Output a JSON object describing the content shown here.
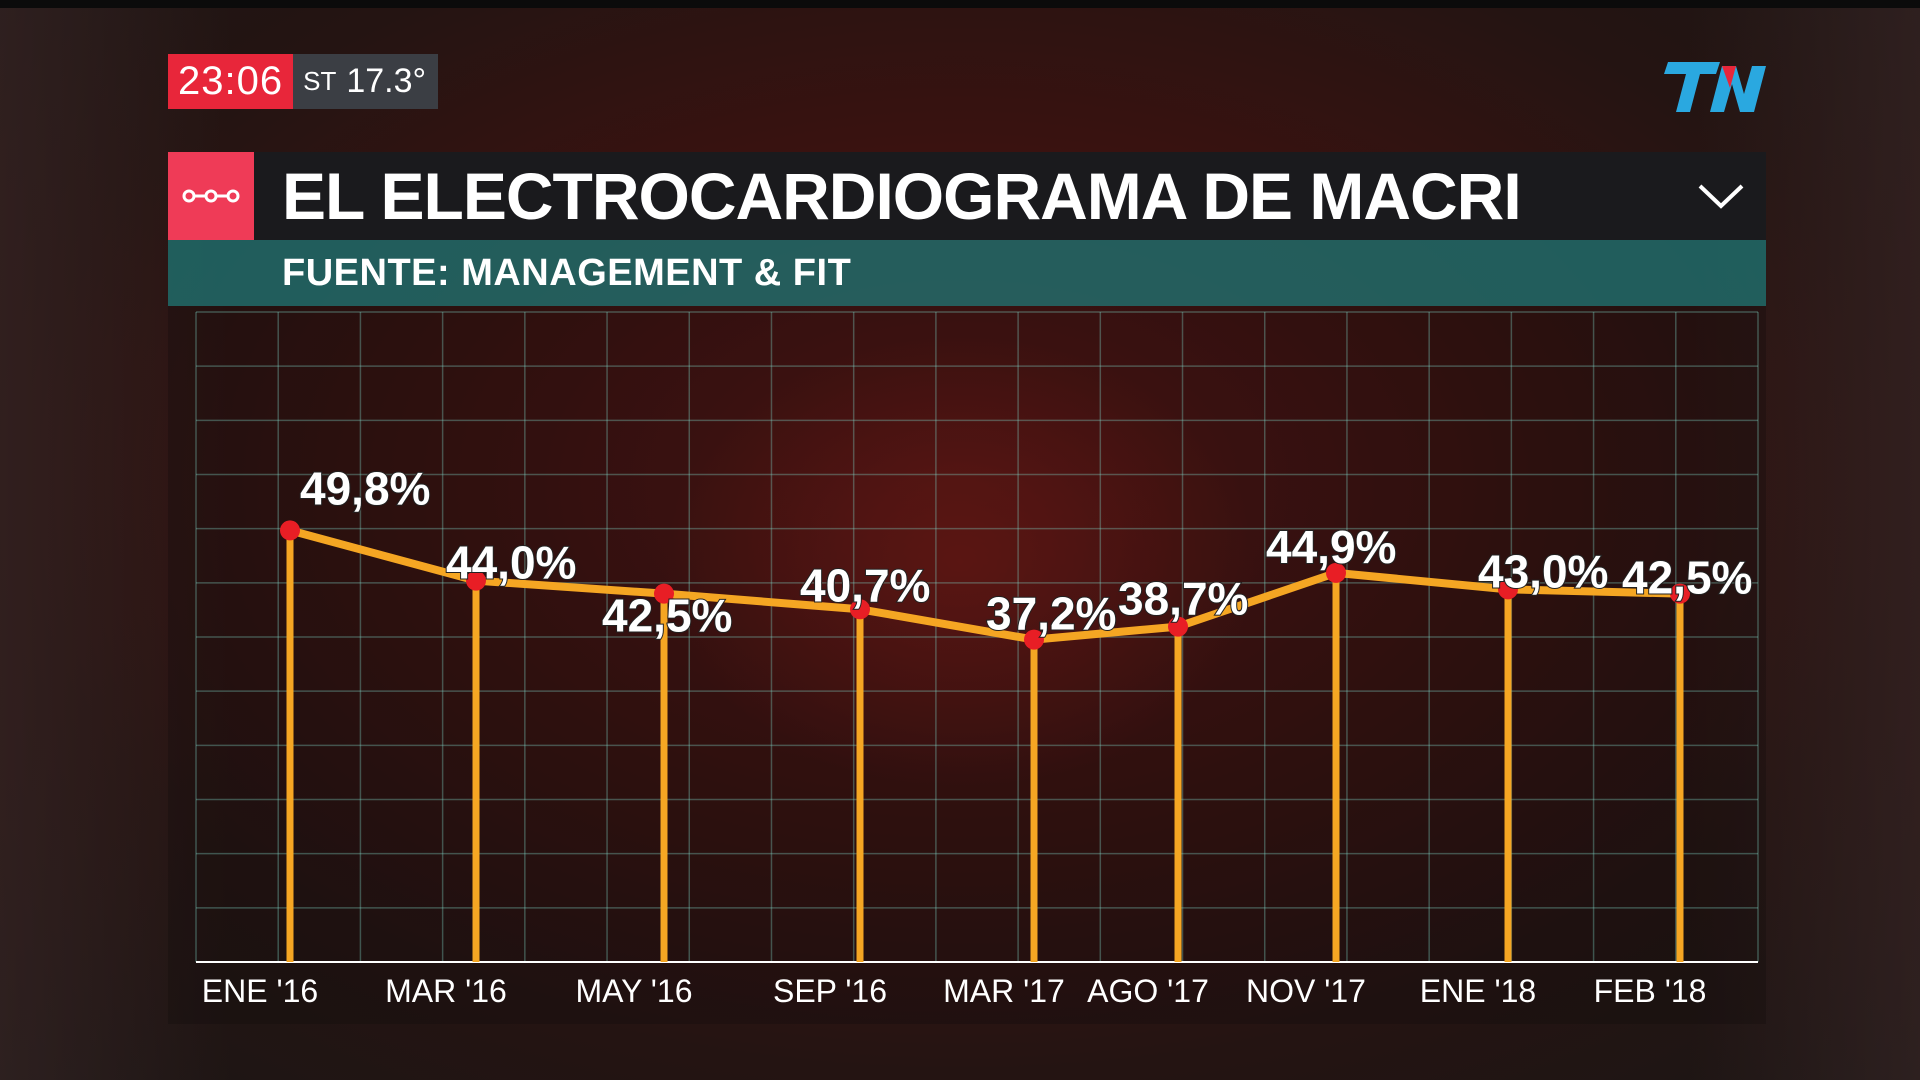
{
  "clock": {
    "time": "23:06",
    "temp_prefix": "ST",
    "temperature": "17.3°"
  },
  "logo": {
    "icon": "tn-logo-icon",
    "text": "TN",
    "color": "#2aa8e0",
    "accent": "#e8263a"
  },
  "header": {
    "title": "EL ELECTROCARDIOGRAMA DE MACRI",
    "badge_icon": "timeline-icon",
    "chevron_icon": "chevron-down-icon",
    "badge_color": "#ef3b57"
  },
  "subheader": {
    "source": "FUENTE: MANAGEMENT & FIT"
  },
  "chart_data": {
    "type": "line",
    "title": "EL ELECTROCARDIOGRAMA DE MACRI",
    "subtitle": "FUENTE: MANAGEMENT & FIT",
    "categories": [
      "ENE '16",
      "MAR '16",
      "MAY '16",
      "SEP '16",
      "MAR '17",
      "AGO '17",
      "NOV '17",
      "ENE '18",
      "FEB '18"
    ],
    "values": [
      49.8,
      44.0,
      42.5,
      40.7,
      37.2,
      38.7,
      44.9,
      43.0,
      42.5
    ],
    "labels": [
      "49,8%",
      "44,0%",
      "42,5%",
      "40,7%",
      "37,2%",
      "38,7%",
      "44,9%",
      "43,0%",
      "42,5%"
    ],
    "xlabel": "",
    "ylabel": "",
    "ylim": [
      0,
      75
    ],
    "grid": true,
    "line_color": "#f5a623",
    "point_color": "#e81e25",
    "grid_color": "#7fd3c6"
  }
}
